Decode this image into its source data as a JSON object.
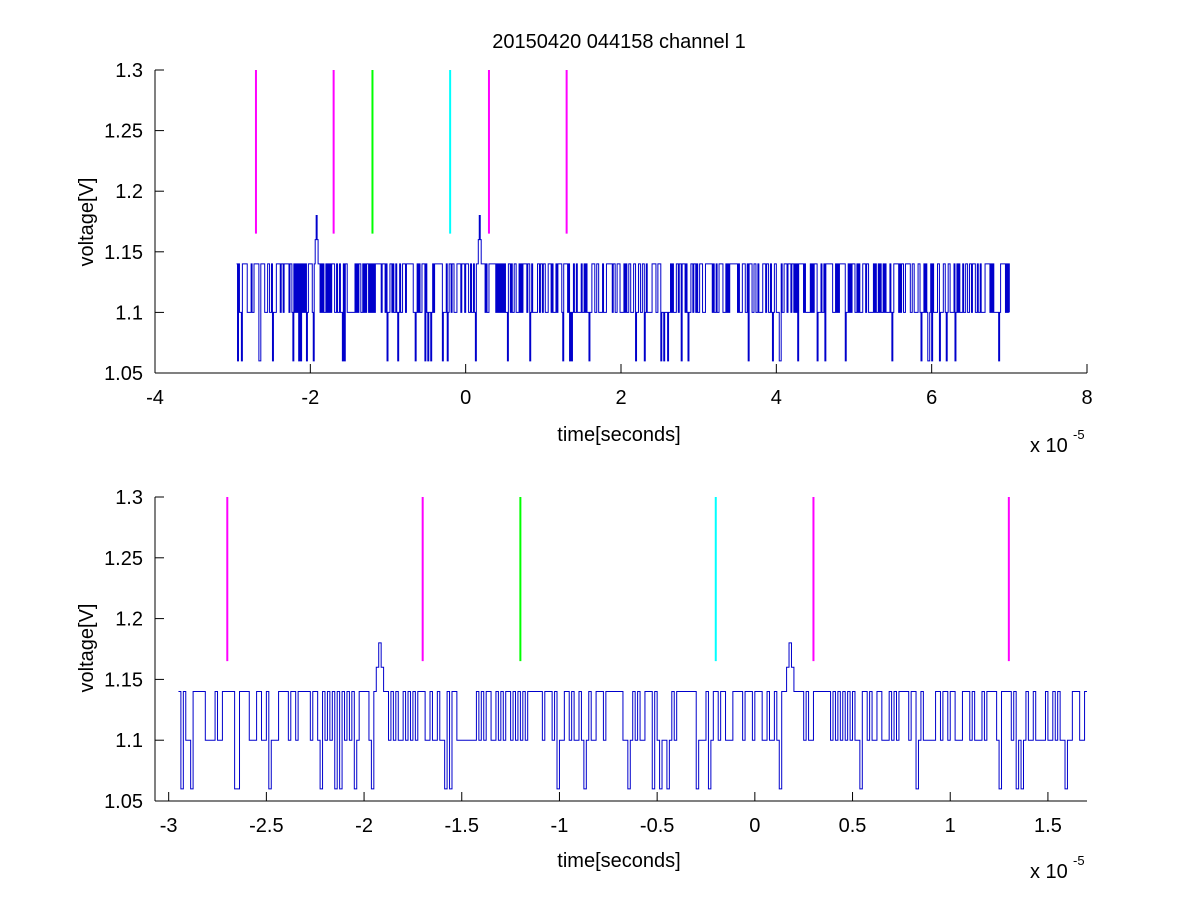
{
  "title": "20150420 044158 channel 1",
  "colors": {
    "signal": "#0000cc",
    "magenta": "#ff00ff",
    "green": "#00ff00",
    "cyan": "#00ffff",
    "axis": "#000000"
  },
  "chart_data": [
    {
      "type": "line",
      "title": "20150420 044158 channel 1",
      "xlabel": "time[seconds]",
      "ylabel": "voltage[V]",
      "x_multiplier_text": "x 10",
      "x_multiplier_exp": "-5",
      "xlim": [
        -4,
        8
      ],
      "ylim": [
        1.05,
        1.3
      ],
      "xticks": [
        -4,
        -2,
        0,
        2,
        4,
        6,
        8
      ],
      "xtick_labels": [
        "-4",
        "-2",
        "0",
        "2",
        "4",
        "6",
        "8"
      ],
      "yticks": [
        1.05,
        1.1,
        1.15,
        1.2,
        1.25,
        1.3
      ],
      "ytick_labels": [
        "1.05",
        "1.1",
        "1.15",
        "1.2",
        "1.25",
        "1.3"
      ],
      "grid": false,
      "signal": {
        "x_start": -2.95,
        "x_end": 7.0,
        "levels": [
          1.06,
          1.1,
          1.14
        ],
        "baseline": 1.1,
        "spikes": [
          {
            "x": -1.93,
            "y": 1.18
          },
          {
            "x": 0.18,
            "y": 1.18
          }
        ]
      },
      "markers": [
        {
          "x": -2.7,
          "y_from": 1.165,
          "y_to": 1.3,
          "color": "#ff00ff"
        },
        {
          "x": -1.7,
          "y_from": 1.165,
          "y_to": 1.3,
          "color": "#ff00ff"
        },
        {
          "x": -1.2,
          "y_from": 1.165,
          "y_to": 1.3,
          "color": "#00ff00"
        },
        {
          "x": -0.2,
          "y_from": 1.165,
          "y_to": 1.3,
          "color": "#00ffff"
        },
        {
          "x": 0.3,
          "y_from": 1.165,
          "y_to": 1.3,
          "color": "#ff00ff"
        },
        {
          "x": 1.3,
          "y_from": 1.165,
          "y_to": 1.3,
          "color": "#ff00ff"
        }
      ]
    },
    {
      "type": "line",
      "title": "",
      "xlabel": "time[seconds]",
      "ylabel": "voltage[V]",
      "x_multiplier_text": "x 10",
      "x_multiplier_exp": "-5",
      "xlim": [
        -3.07,
        1.7
      ],
      "ylim": [
        1.05,
        1.3
      ],
      "xticks": [
        -3,
        -2.5,
        -2,
        -1.5,
        -1,
        -0.5,
        0,
        0.5,
        1,
        1.5
      ],
      "xtick_labels": [
        "-3",
        "-2.5",
        "-2",
        "-1.5",
        "-1",
        "-0.5",
        "0",
        "0.5",
        "1",
        "1.5"
      ],
      "yticks": [
        1.05,
        1.1,
        1.15,
        1.2,
        1.25,
        1.3
      ],
      "ytick_labels": [
        "1.05",
        "1.1",
        "1.15",
        "1.2",
        "1.25",
        "1.3"
      ],
      "grid": false,
      "signal": {
        "x_start": -2.95,
        "x_end": 1.7,
        "levels": [
          1.06,
          1.1,
          1.14
        ],
        "baseline": 1.1,
        "spikes": [
          {
            "x": -1.93,
            "y": 1.18
          },
          {
            "x": 0.18,
            "y": 1.18
          }
        ]
      },
      "markers": [
        {
          "x": -2.7,
          "y_from": 1.165,
          "y_to": 1.3,
          "color": "#ff00ff"
        },
        {
          "x": -1.7,
          "y_from": 1.165,
          "y_to": 1.3,
          "color": "#ff00ff"
        },
        {
          "x": -1.2,
          "y_from": 1.165,
          "y_to": 1.3,
          "color": "#00ff00"
        },
        {
          "x": -0.2,
          "y_from": 1.165,
          "y_to": 1.3,
          "color": "#00ffff"
        },
        {
          "x": 0.3,
          "y_from": 1.165,
          "y_to": 1.3,
          "color": "#ff00ff"
        },
        {
          "x": 1.3,
          "y_from": 1.165,
          "y_to": 1.3,
          "color": "#ff00ff"
        }
      ]
    }
  ]
}
